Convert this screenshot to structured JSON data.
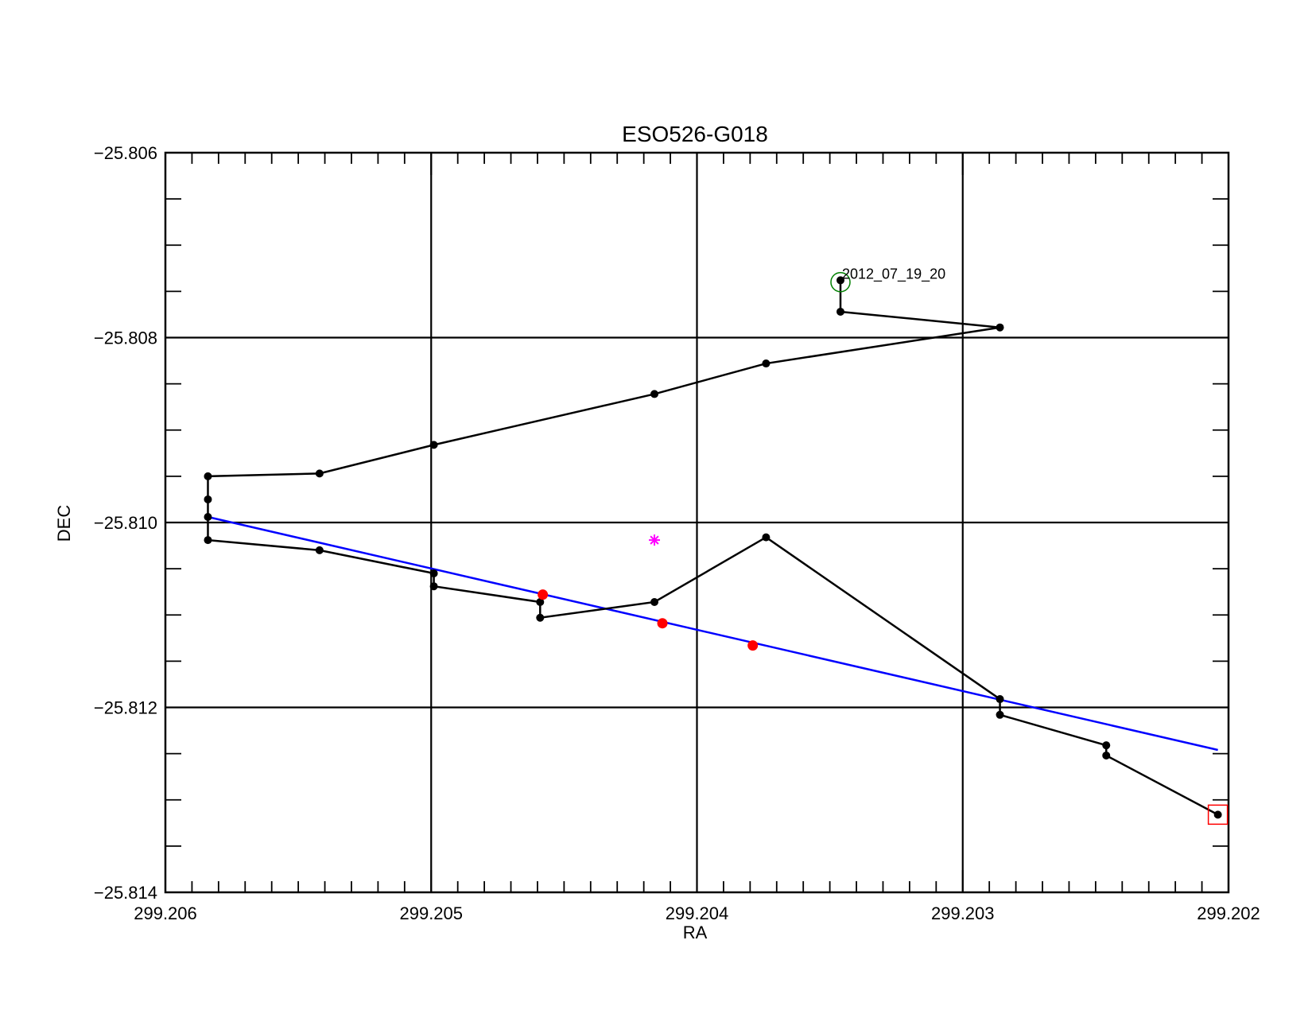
{
  "chart_data": {
    "type": "scatter",
    "title": "ESO526-G018",
    "xlabel": "RA",
    "ylabel": "DEC",
    "xlim": [
      299.206,
      299.202
    ],
    "ylim": [
      -25.814,
      -25.806
    ],
    "x_reversed": true,
    "grid": true,
    "x_ticks": [
      {
        "value": 299.206,
        "label": "299.206"
      },
      {
        "value": 299.205,
        "label": "299.205"
      },
      {
        "value": 299.204,
        "label": "299.204"
      },
      {
        "value": 299.203,
        "label": "299.203"
      },
      {
        "value": 299.202,
        "label": "299.202"
      }
    ],
    "y_ticks": [
      {
        "value": -25.806,
        "label": "−25.806"
      },
      {
        "value": -25.808,
        "label": "−25.808"
      },
      {
        "value": -25.81,
        "label": "−25.810"
      },
      {
        "value": -25.812,
        "label": "−25.812"
      },
      {
        "value": -25.814,
        "label": "−25.814"
      }
    ],
    "series": [
      {
        "style": "black line with filled dots",
        "color": "#000000",
        "points": [
          {
            "x": 299.20346,
            "y": -25.80738
          },
          {
            "x": 299.20346,
            "y": -25.80772
          },
          {
            "x": 299.20286,
            "y": -25.80789
          },
          {
            "x": 299.20374,
            "y": -25.80828
          },
          {
            "x": 299.20416,
            "y": -25.80861
          },
          {
            "x": 299.20499,
            "y": -25.80916
          },
          {
            "x": 299.20542,
            "y": -25.80947
          },
          {
            "x": 299.20584,
            "y": -25.8095
          },
          {
            "x": 299.20584,
            "y": -25.80975
          },
          {
            "x": 299.20584,
            "y": -25.80994
          },
          {
            "x": 299.20584,
            "y": -25.81019
          },
          {
            "x": 299.20542,
            "y": -25.8103
          },
          {
            "x": 299.20499,
            "y": -25.81055
          },
          {
            "x": 299.20499,
            "y": -25.81069
          },
          {
            "x": 299.20459,
            "y": -25.81086
          },
          {
            "x": 299.20459,
            "y": -25.81103
          },
          {
            "x": 299.20416,
            "y": -25.81086
          },
          {
            "x": 299.20374,
            "y": -25.81016
          },
          {
            "x": 299.20286,
            "y": -25.81191
          },
          {
            "x": 299.20286,
            "y": -25.81208
          },
          {
            "x": 299.20246,
            "y": -25.81241
          },
          {
            "x": 299.20246,
            "y": -25.81252
          },
          {
            "x": 299.20204,
            "y": -25.81316
          }
        ]
      },
      {
        "style": "blue fit line",
        "color": "#0000ff",
        "points": [
          {
            "x": 299.20584,
            "y": -25.80994
          },
          {
            "x": 299.20204,
            "y": -25.81246
          }
        ]
      },
      {
        "style": "red filled dots",
        "color": "#ff0000",
        "points": [
          {
            "x": 299.20458,
            "y": -25.81078
          },
          {
            "x": 299.20413,
            "y": -25.81109
          },
          {
            "x": 299.20379,
            "y": -25.81133
          }
        ]
      },
      {
        "style": "magenta asterisk",
        "color": "#ff00ff",
        "points": [
          {
            "x": 299.20416,
            "y": -25.81019
          }
        ]
      }
    ],
    "markers": [
      {
        "shape": "open circle",
        "color": "#008000",
        "x": 299.20346,
        "y": -25.8074
      },
      {
        "shape": "open square",
        "color": "#ff0000",
        "x": 299.20204,
        "y": -25.81316
      }
    ],
    "annotations": [
      {
        "text": "2012_07_19_20",
        "x": 299.20346,
        "y": -25.80738
      }
    ]
  }
}
